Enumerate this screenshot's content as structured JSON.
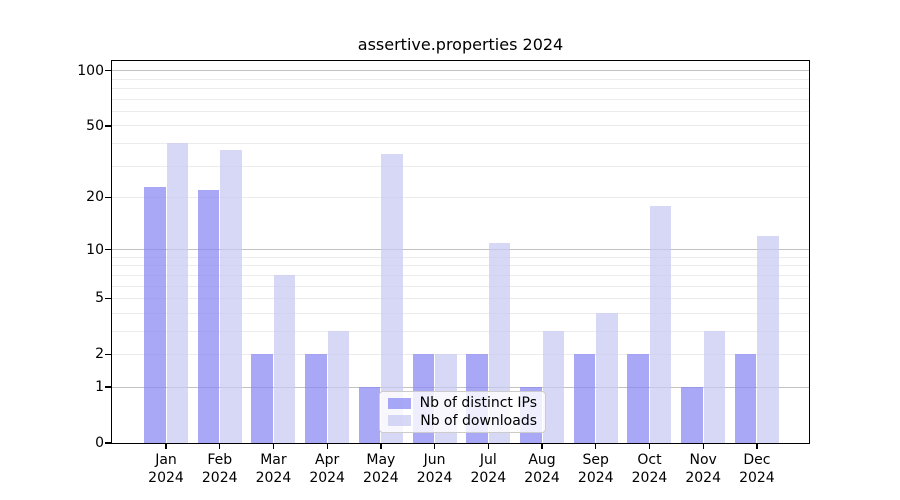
{
  "title": "assertive.properties 2024",
  "chart_data": {
    "type": "bar",
    "title": "assertive.properties 2024",
    "x": {
      "months": [
        "Jan",
        "Feb",
        "Mar",
        "Apr",
        "May",
        "Jun",
        "Jul",
        "Aug",
        "Sep",
        "Oct",
        "Nov",
        "Dec"
      ],
      "year": "2024"
    },
    "y_axis": {
      "scale": "log1p",
      "ticks": [
        0,
        1,
        2,
        5,
        10,
        20,
        50,
        100
      ],
      "top_value": 113,
      "minor_gridlines": [
        2,
        3,
        4,
        5,
        6,
        7,
        8,
        9,
        20,
        30,
        40,
        50,
        60,
        70,
        80,
        90
      ],
      "major_gridlines": [
        1,
        10,
        100
      ]
    },
    "series": [
      {
        "name": "Nb of distinct IPs",
        "color": "rgba(134,134,244,0.72)",
        "values": [
          23,
          22,
          2,
          2,
          1,
          2,
          2,
          1,
          2,
          2,
          1,
          2
        ]
      },
      {
        "name": "Nb of downloads",
        "color": "rgba(199,199,242,0.72)",
        "values": [
          40,
          37,
          7,
          3,
          35,
          2,
          11,
          3,
          4,
          18,
          3,
          12
        ]
      }
    ],
    "legend": {
      "entries": [
        "Nb of distinct IPs",
        "Nb of downloads"
      ],
      "position": "lower center"
    }
  }
}
